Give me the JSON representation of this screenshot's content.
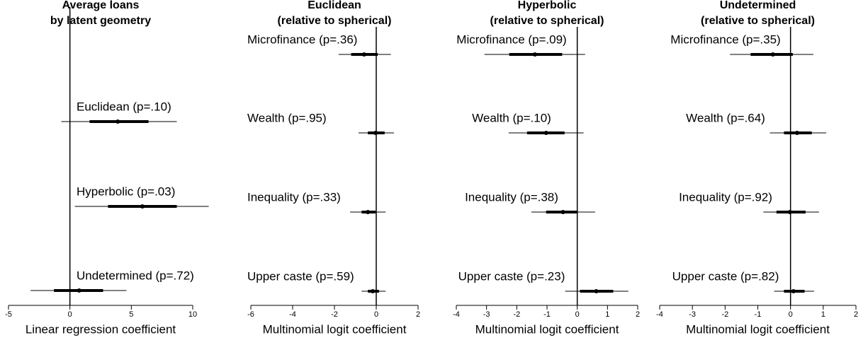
{
  "chart_data": [
    {
      "type": "coefplot",
      "title": [
        "Average loans",
        "by latent geometry"
      ],
      "xlabel": "Linear regression coefficient",
      "categories": [
        "Euclidean (p=.10)",
        "Hyperbolic (p=.03)",
        "Undetermined (p=.72)"
      ],
      "values": [
        3.9,
        5.9,
        0.75
      ],
      "inner_low": [
        1.6,
        3.1,
        -1.3
      ],
      "inner_high": [
        6.4,
        8.7,
        2.7
      ],
      "outer_low": [
        -0.7,
        0.4,
        -3.2
      ],
      "outer_high": [
        8.7,
        11.3,
        4.6
      ],
      "refline": 0,
      "xlim": [
        -5,
        10
      ],
      "xticks": [
        -5,
        0,
        5,
        10
      ],
      "color": "#000000"
    },
    {
      "type": "coefplot",
      "title": [
        "Euclidean",
        "(relative to spherical)"
      ],
      "xlabel": "Multinomial logit coefficient",
      "categories": [
        "Microfinance (p=.36)",
        "Wealth (p=.95)",
        "Inequality (p=.33)",
        "Upper caste (p=.59)"
      ],
      "values": [
        -0.58,
        -0.03,
        -0.4,
        -0.17
      ],
      "inner_low": [
        -1.2,
        -0.4,
        -0.7,
        -0.4
      ],
      "inner_high": [
        0.07,
        0.4,
        -0.03,
        0.13
      ],
      "outer_low": [
        -1.8,
        -0.85,
        -1.25,
        -0.7
      ],
      "outer_high": [
        0.7,
        0.85,
        0.45,
        0.45
      ],
      "refline": 0,
      "xlim": [
        -6,
        2
      ],
      "xticks": [
        -6,
        -4,
        -2,
        0,
        2
      ],
      "color": "#000000"
    },
    {
      "type": "coefplot",
      "title": [
        "Hyperbolic",
        "(relative to spherical)"
      ],
      "xlabel": "Multinomial logit coefficient",
      "categories": [
        "Microfinance (p=.09)",
        "Wealth (p=.10)",
        "Inequality (p=.38)",
        "Upper caste (p=.23)"
      ],
      "values": [
        -1.4,
        -1.03,
        -0.47,
        0.63
      ],
      "inner_low": [
        -2.25,
        -1.66,
        -1.03,
        0.09
      ],
      "inner_high": [
        -0.5,
        -0.42,
        0.02,
        1.19
      ],
      "outer_low": [
        -3.07,
        -2.27,
        -1.52,
        -0.4
      ],
      "outer_high": [
        0.26,
        0.21,
        0.59,
        1.69
      ],
      "refline": 0,
      "xlim": [
        -4,
        2
      ],
      "xticks": [
        -4,
        -3,
        -2,
        -1,
        0,
        1,
        2
      ],
      "color": "#000000"
    },
    {
      "type": "coefplot",
      "title": [
        "Undetermined",
        "(relative to spherical)"
      ],
      "xlabel": "Multinomial logit coefficient",
      "categories": [
        "Microfinance (p=.35)",
        "Wealth (p=.64)",
        "Inequality (p=.92)",
        "Upper caste (p=.82)"
      ],
      "values": [
        -0.54,
        0.2,
        -0.02,
        0.09
      ],
      "inner_low": [
        -1.22,
        -0.2,
        -0.43,
        -0.2
      ],
      "inner_high": [
        0.07,
        0.65,
        0.46,
        0.43
      ],
      "outer_low": [
        -1.85,
        -0.63,
        -0.83,
        -0.5
      ],
      "outer_high": [
        0.7,
        1.09,
        0.87,
        0.72
      ],
      "refline": 0,
      "xlim": [
        -4,
        2
      ],
      "xticks": [
        -4,
        -3,
        -2,
        -1,
        0,
        1,
        2
      ],
      "color": "#000000"
    }
  ]
}
